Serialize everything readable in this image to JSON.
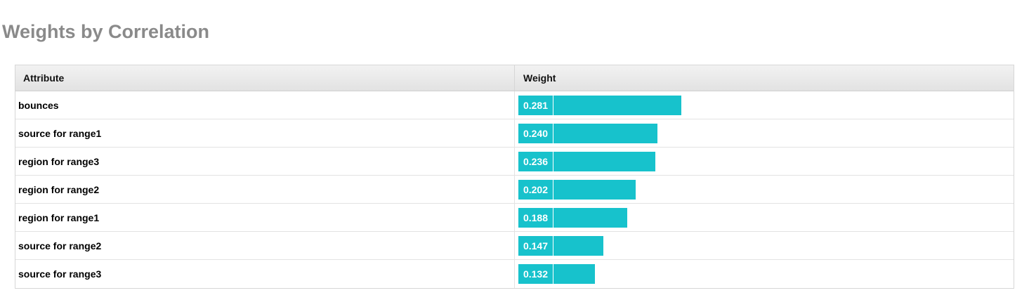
{
  "title": "Weights by Correlation",
  "table": {
    "columns": [
      "Attribute",
      "Weight"
    ],
    "bar_color": "#17c2cc",
    "rows": [
      {
        "attribute": "bounces",
        "weight": 0.281,
        "weight_label": "0.281"
      },
      {
        "attribute": "source for range1",
        "weight": 0.24,
        "weight_label": "0.240"
      },
      {
        "attribute": "region for range3",
        "weight": 0.236,
        "weight_label": "0.236"
      },
      {
        "attribute": "region for range2",
        "weight": 0.202,
        "weight_label": "0.202"
      },
      {
        "attribute": "region for range1",
        "weight": 0.188,
        "weight_label": "0.188"
      },
      {
        "attribute": "source for range2",
        "weight": 0.147,
        "weight_label": "0.147"
      },
      {
        "attribute": "source for range3",
        "weight": 0.132,
        "weight_label": "0.132"
      }
    ]
  }
}
